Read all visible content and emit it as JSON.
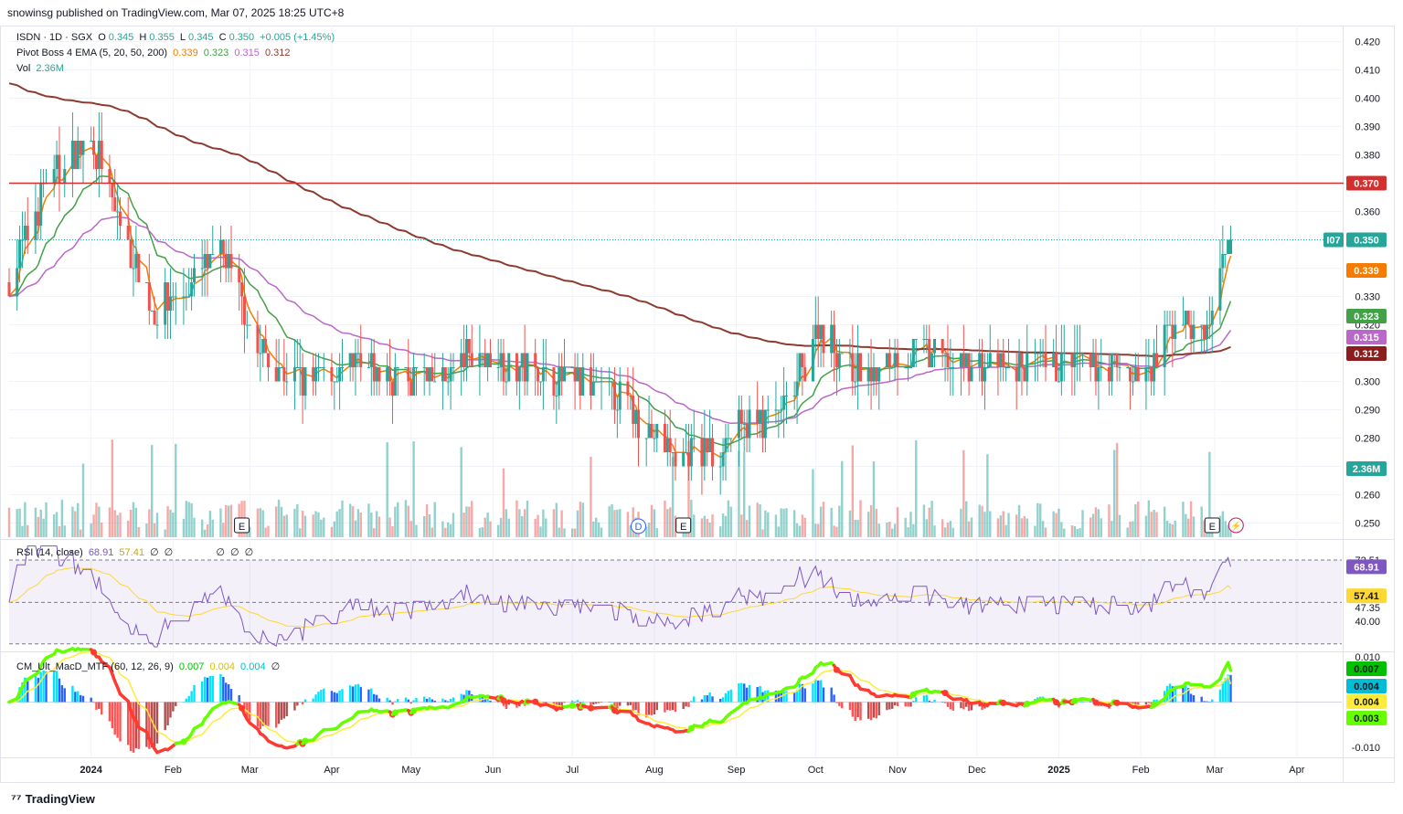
{
  "header": {
    "published": "snowinsg published on TradingView.com, Mar 07, 2025 18:25 UTC+8"
  },
  "symbol": {
    "name": "ISDN · 1D · SGX",
    "o_label": "O",
    "o": "0.345",
    "h_label": "H",
    "h": "0.355",
    "l_label": "L",
    "l": "0.345",
    "c_label": "C",
    "c": "0.350",
    "change": "+0.005 (+1.45%)"
  },
  "ema_legend": {
    "label": "Pivot Boss 4 EMA (5, 20, 50, 200)",
    "values": [
      "0.339",
      "0.323",
      "0.315",
      "0.312"
    ],
    "colors": [
      "#f57c00",
      "#43a047",
      "#ba68c8",
      "#8d3b2f"
    ]
  },
  "vol_legend": {
    "label": "Vol",
    "value": "2.36M"
  },
  "rsi_legend": {
    "label": "RSI (14, close)",
    "rsi": "68.91",
    "ma": "57.41",
    "extra": [
      "∅",
      "∅"
    ],
    "extra2": [
      "∅",
      "∅",
      "∅"
    ]
  },
  "macd_legend": {
    "label": "CM_Ult_MacD_MTF (60, 12, 26, 9)",
    "v1": "0.007",
    "v2": "0.004",
    "v3": "0.004",
    "v4": "∅"
  },
  "price_axis": {
    "ticks": [
      "0.420",
      "0.410",
      "0.400",
      "0.390",
      "0.380",
      "0.370",
      "0.360",
      "0.350",
      "0.340",
      "0.330",
      "0.320",
      "0.310",
      "0.300",
      "0.290",
      "0.280",
      "0.270",
      "0.260",
      "0.250"
    ],
    "resistance": "0.370",
    "last": "0.350",
    "countdown": "I07",
    "ema_tags": [
      "0.339",
      "0.323",
      "0.315",
      "0.312"
    ],
    "vol_tag": "2.36M"
  },
  "rsi_axis": {
    "ticks": [
      "72.51",
      "47.35",
      "40.00"
    ],
    "rsi_tag": "68.91",
    "ma_tag": "57.41"
  },
  "macd_axis": {
    "ticks": [
      "0.010",
      "-0.010"
    ],
    "tags": [
      "0.007",
      "0.004",
      "0.004",
      "0.003"
    ]
  },
  "time_axis": [
    "2024",
    "Feb",
    "Mar",
    "Apr",
    "May",
    "Jun",
    "Jul",
    "Aug",
    "Sep",
    "Oct",
    "Nov",
    "Dec",
    "2025",
    "Feb",
    "Mar",
    "Apr"
  ],
  "event_markers": [
    "E",
    "D",
    "E",
    "E"
  ],
  "colors": {
    "up": "#26a69a",
    "down": "#ef5350",
    "resistance": "#d32f2f",
    "rsi": "#7e57c2",
    "rsi_ma": "#fdd835",
    "grid": "#f0f3fa"
  },
  "chart_data": {
    "type": "candlestick",
    "symbol": "ISDN",
    "timeframe": "1D",
    "resistance_level": 0.37,
    "close_keypoints": [
      {
        "x": "2023-12-01",
        "y": 0.335
      },
      {
        "x": "2023-12-15",
        "y": 0.37
      },
      {
        "x": "2024-01-02",
        "y": 0.385
      },
      {
        "x": "2024-01-10",
        "y": 0.36
      },
      {
        "x": "2024-01-25",
        "y": 0.325
      },
      {
        "x": "2024-02-10",
        "y": 0.335
      },
      {
        "x": "2024-02-20",
        "y": 0.345
      },
      {
        "x": "2024-03-05",
        "y": 0.31
      },
      {
        "x": "2024-03-20",
        "y": 0.3
      },
      {
        "x": "2024-04-10",
        "y": 0.305
      },
      {
        "x": "2024-05-10",
        "y": 0.3
      },
      {
        "x": "2024-05-25",
        "y": 0.31
      },
      {
        "x": "2024-06-20",
        "y": 0.303
      },
      {
        "x": "2024-07-20",
        "y": 0.295
      },
      {
        "x": "2024-08-05",
        "y": 0.275
      },
      {
        "x": "2024-08-25",
        "y": 0.275
      },
      {
        "x": "2024-09-05",
        "y": 0.285
      },
      {
        "x": "2024-09-20",
        "y": 0.29
      },
      {
        "x": "2024-10-02",
        "y": 0.32
      },
      {
        "x": "2024-10-20",
        "y": 0.3
      },
      {
        "x": "2024-11-05",
        "y": 0.31
      },
      {
        "x": "2024-12-01",
        "y": 0.305
      },
      {
        "x": "2024-12-20",
        "y": 0.305
      },
      {
        "x": "2025-01-15",
        "y": 0.305
      },
      {
        "x": "2025-02-05",
        "y": 0.303
      },
      {
        "x": "2025-02-15",
        "y": 0.325
      },
      {
        "x": "2025-02-25",
        "y": 0.315
      },
      {
        "x": "2025-03-07",
        "y": 0.35
      }
    ],
    "ema": [
      {
        "name": "EMA 5",
        "last": 0.339
      },
      {
        "name": "EMA 20",
        "last": 0.323
      },
      {
        "name": "EMA 50",
        "last": 0.315
      },
      {
        "name": "EMA 200",
        "last": 0.312
      }
    ],
    "ylim": [
      0.245,
      0.425
    ],
    "volume_last": "2.36M",
    "rsi": {
      "last": 68.91,
      "ma_last": 57.41,
      "levels": [
        70,
        50,
        30
      ]
    },
    "macd": {
      "last": 0.007,
      "signal": 0.004,
      "hist": 0.004
    }
  }
}
